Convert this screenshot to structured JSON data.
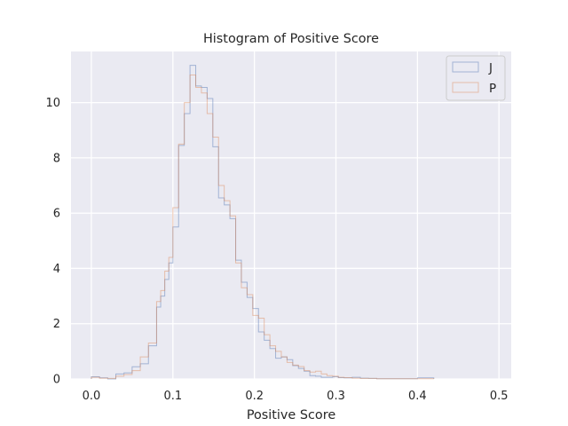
{
  "chart_data": {
    "type": "histogram",
    "title": "Histogram of Positive Score",
    "xlabel": "Positive Score",
    "ylabel": "",
    "xlim": [
      -0.025,
      0.515
    ],
    "ylim": [
      0,
      11.85
    ],
    "xticks": [
      0.0,
      0.1,
      0.2,
      0.3,
      0.4,
      0.5
    ],
    "xtick_labels": [
      "0.0",
      "0.1",
      "0.2",
      "0.3",
      "0.4",
      "0.5"
    ],
    "yticks": [
      0,
      2,
      4,
      6,
      8,
      10
    ],
    "ytick_labels": [
      "0",
      "2",
      "4",
      "6",
      "8",
      "10"
    ],
    "grid": true,
    "legend_position": "upper right",
    "series": [
      {
        "name": "J",
        "color": "#4c72b0",
        "edges": [
          0.0,
          0.01,
          0.02,
          0.03,
          0.04,
          0.05,
          0.06,
          0.07,
          0.08,
          0.085,
          0.09,
          0.095,
          0.1,
          0.107,
          0.114,
          0.121,
          0.128,
          0.135,
          0.142,
          0.149,
          0.156,
          0.163,
          0.17,
          0.177,
          0.184,
          0.191,
          0.198,
          0.205,
          0.212,
          0.219,
          0.226,
          0.233,
          0.24,
          0.247,
          0.254,
          0.261,
          0.268,
          0.275,
          0.282,
          0.289,
          0.296,
          0.303,
          0.31,
          0.32,
          0.33,
          0.34,
          0.35,
          0.36,
          0.37,
          0.38,
          0.39,
          0.4,
          0.41,
          0.42
        ],
        "counts": [
          0.08,
          0.04,
          0.0,
          0.18,
          0.22,
          0.44,
          0.55,
          1.2,
          2.6,
          3.0,
          3.6,
          4.2,
          5.5,
          8.45,
          9.6,
          11.35,
          10.6,
          10.55,
          10.15,
          8.4,
          6.55,
          6.3,
          5.8,
          4.3,
          3.5,
          2.95,
          2.55,
          1.7,
          1.4,
          1.1,
          0.75,
          0.8,
          0.7,
          0.48,
          0.38,
          0.28,
          0.12,
          0.1,
          0.06,
          0.06,
          0.08,
          0.05,
          0.04,
          0.06,
          0.03,
          0.02,
          0.01,
          0.01,
          0.01,
          0.01,
          0.01,
          0.04,
          0.04
        ]
      },
      {
        "name": "P",
        "color": "#dd8452",
        "edges": [
          0.0,
          0.01,
          0.02,
          0.03,
          0.04,
          0.05,
          0.06,
          0.07,
          0.08,
          0.085,
          0.09,
          0.095,
          0.1,
          0.107,
          0.114,
          0.121,
          0.128,
          0.135,
          0.142,
          0.149,
          0.156,
          0.163,
          0.17,
          0.177,
          0.184,
          0.191,
          0.198,
          0.205,
          0.212,
          0.219,
          0.226,
          0.233,
          0.24,
          0.247,
          0.254,
          0.261,
          0.268,
          0.275,
          0.282,
          0.289,
          0.296,
          0.303,
          0.31,
          0.32,
          0.33,
          0.34,
          0.35,
          0.36,
          0.37,
          0.38,
          0.39,
          0.4,
          0.41,
          0.42
        ],
        "counts": [
          0.06,
          0.03,
          0.02,
          0.1,
          0.16,
          0.3,
          0.8,
          1.3,
          2.8,
          3.2,
          3.9,
          4.4,
          6.2,
          8.5,
          10.0,
          11.0,
          10.55,
          10.35,
          9.6,
          8.75,
          7.0,
          6.45,
          5.9,
          4.2,
          3.3,
          3.05,
          2.3,
          2.2,
          1.6,
          1.2,
          1.0,
          0.8,
          0.6,
          0.5,
          0.45,
          0.3,
          0.25,
          0.28,
          0.18,
          0.12,
          0.1,
          0.06,
          0.05,
          0.03,
          0.02,
          0.02,
          0.01,
          0.01,
          0.01,
          0.01,
          0.01,
          0.01,
          0.01
        ]
      }
    ]
  }
}
